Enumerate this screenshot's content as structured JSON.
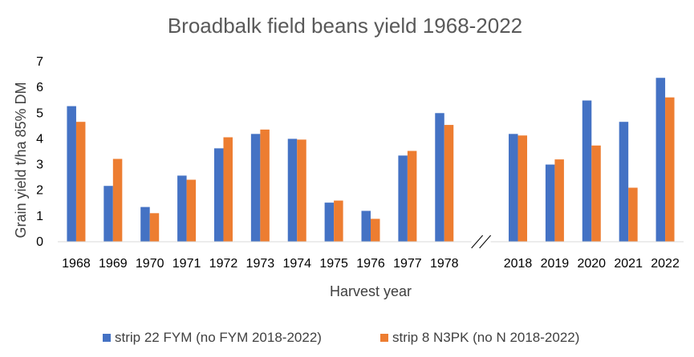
{
  "chart_data": {
    "type": "bar",
    "title": "Broadbalk field beans yield 1968-2022",
    "xlabel": "Harvest year",
    "ylabel": "Grain yield t/ha 85% DM",
    "ylim": [
      0,
      7
    ],
    "yticks": [
      "0",
      "1",
      "2",
      "3",
      "4",
      "5",
      "6",
      "7"
    ],
    "grid": false,
    "legend_position": "bottom",
    "axis_break": "//",
    "categories": [
      "1968",
      "1969",
      "1970",
      "1971",
      "1972",
      "1973",
      "1974",
      "1975",
      "1976",
      "1977",
      "1978",
      "",
      "2018",
      "2019",
      "2020",
      "2021",
      "2022"
    ],
    "series": [
      {
        "name": "strip 22 FYM (no FYM 2018-2022)",
        "color": "#4472C4",
        "values": [
          5.27,
          2.17,
          1.35,
          2.57,
          3.63,
          4.19,
          4.0,
          1.52,
          1.2,
          3.35,
          5.0,
          null,
          4.19,
          3.0,
          5.49,
          4.66,
          6.37
        ]
      },
      {
        "name": "strip 8 N3PK (no N 2018-2022)",
        "color": "#ED7D31",
        "values": [
          4.66,
          3.22,
          1.11,
          2.41,
          4.06,
          4.36,
          3.97,
          1.6,
          0.89,
          3.53,
          4.54,
          null,
          4.13,
          3.2,
          3.74,
          2.1,
          5.61
        ]
      }
    ]
  }
}
